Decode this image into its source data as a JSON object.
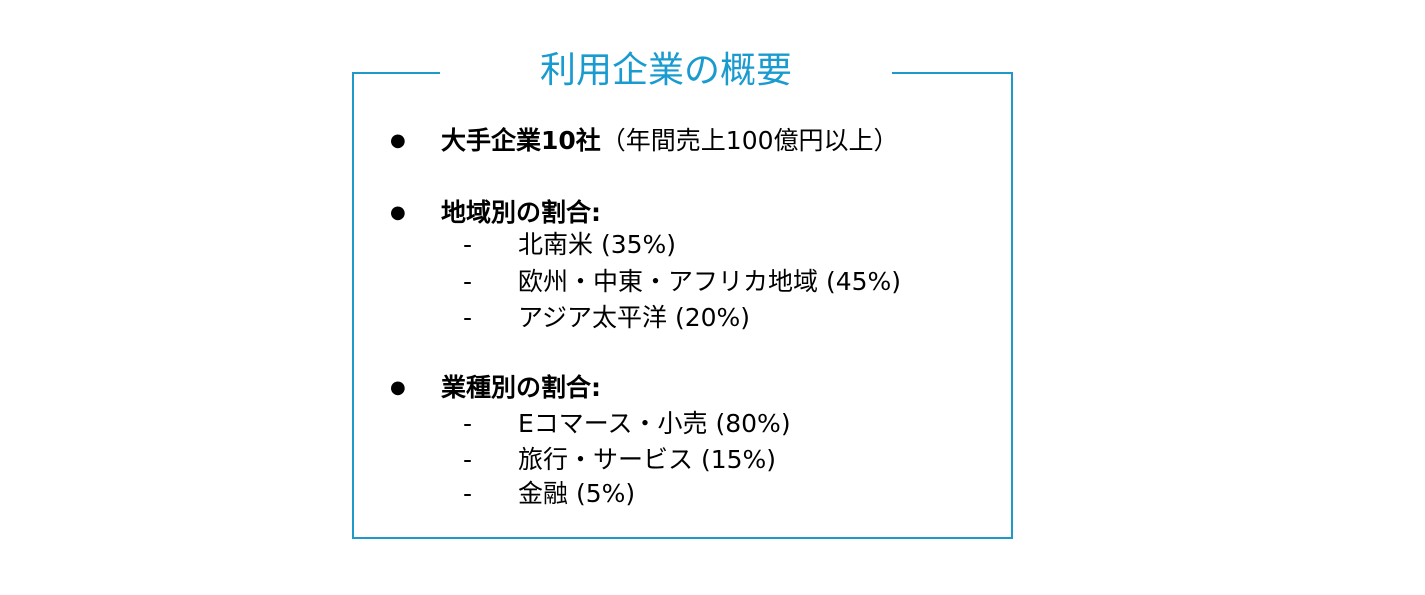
{
  "title": "利用企業の概要",
  "accent_color": "#1a9bd0",
  "items": [
    {
      "bold": "大手企業10社",
      "text": "（年間売上100億円以上）"
    },
    {
      "bold": "地域別の割合:",
      "subitems": [
        "北南米 (35%)",
        "欧州・中東・アフリカ地域 (45%)",
        "アジア太平洋 (20%)"
      ]
    },
    {
      "bold": "業種別の割合:",
      "subitems": [
        "Eコマース・小売 (80%)",
        "旅行・サービス (15%)",
        "金融 (5%)"
      ]
    }
  ],
  "bullet_glyph": "●",
  "dash_glyph": "-"
}
